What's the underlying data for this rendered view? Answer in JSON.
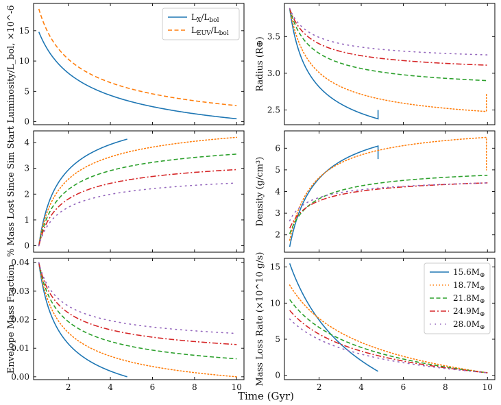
{
  "figure": {
    "xlabel": "Time (Gyr)"
  },
  "chart_data": [
    {
      "id": "luminosity",
      "type": "line",
      "ylabel": "Luminosity/L_bol, ×10^-6",
      "xlim": [
        0.35,
        10.35
      ],
      "ylim": [
        -0.5,
        19.5
      ],
      "xticks": [
        2,
        4,
        6,
        8,
        10
      ],
      "yticks": [
        0,
        5,
        10,
        15
      ],
      "ytick_labels": [
        "0",
        "5",
        "10",
        "15"
      ],
      "show_xtick_labels": false,
      "legend": "top-right",
      "series": [
        {
          "name": "L_X/L_bol",
          "label_main": "L",
          "label_sub": "X",
          "label_main2": "/L",
          "label_sub2": "bol",
          "color": "#1f77b4",
          "dash": "solid",
          "func": "power",
          "p": [
            0.6,
            14.8,
            1.25,
            0.48,
            10.0,
            0.49
          ]
        },
        {
          "name": "L_EUV/L_bol",
          "label_main": "L",
          "label_sub": "EUV",
          "label_main2": "/L",
          "label_sub2": "bol",
          "color": "#ff7f0e",
          "dash": "dashed",
          "func": "power",
          "p": [
            0.6,
            18.6,
            0.95,
            2.65,
            10.0,
            0.49
          ]
        }
      ]
    },
    {
      "id": "radius",
      "type": "line",
      "ylabel": "Radius (R⊕)",
      "xlim": [
        0.35,
        10.35
      ],
      "ylim": [
        2.3,
        3.95
      ],
      "xticks": [
        2,
        4,
        6,
        8,
        10
      ],
      "yticks": [
        2.5,
        3.0,
        3.5
      ],
      "ytick_labels": [
        "2.5",
        "3.0",
        "3.5"
      ],
      "show_xtick_labels": false,
      "series": [
        {
          "name": "15.6M⊕",
          "color": "#1f77b4",
          "dash": "solid",
          "func": "power",
          "p": [
            0.6,
            3.88,
            0.55,
            2.38,
            4.8,
            0.5
          ],
          "tail": 2.5
        },
        {
          "name": "18.7M⊕",
          "color": "#ff7f0e",
          "dash": "dotted",
          "func": "power",
          "p": [
            0.6,
            3.88,
            0.75,
            2.48,
            9.95,
            0.7
          ],
          "tail": 2.73
        },
        {
          "name": "21.8M⊕",
          "color": "#2ca02c",
          "dash": "dashed",
          "func": "power",
          "p": [
            0.6,
            3.88,
            0.75,
            2.9,
            10.0,
            0.7
          ]
        },
        {
          "name": "24.9M⊕",
          "color": "#d62728",
          "dash": "dashdot",
          "func": "power",
          "p": [
            0.6,
            3.88,
            0.75,
            3.11,
            10.0,
            0.7
          ]
        },
        {
          "name": "28.0M⊕",
          "color": "#9467bd",
          "dash": "densedot",
          "func": "power",
          "p": [
            0.6,
            3.88,
            0.75,
            3.25,
            10.0,
            0.7
          ]
        }
      ]
    },
    {
      "id": "mass_lost",
      "type": "line",
      "ylabel": "% Mass Lost Since Sim Start",
      "xlim": [
        0.35,
        10.35
      ],
      "ylim": [
        -0.25,
        4.45
      ],
      "xticks": [
        2,
        4,
        6,
        8,
        10
      ],
      "yticks": [
        0,
        1,
        2,
        3,
        4
      ],
      "ytick_labels": [
        "0",
        "1",
        "2",
        "3",
        "4"
      ],
      "show_xtick_labels": false,
      "series": [
        {
          "name": "15.6M⊕",
          "color": "#1f77b4",
          "dash": "solid",
          "func": "power",
          "p": [
            0.6,
            0.0,
            0.55,
            4.13,
            4.8,
            0.5
          ]
        },
        {
          "name": "18.7M⊕",
          "color": "#ff7f0e",
          "dash": "dotted",
          "func": "power",
          "p": [
            0.6,
            0.0,
            0.55,
            4.2,
            10.0,
            0.5
          ]
        },
        {
          "name": "21.8M⊕",
          "color": "#2ca02c",
          "dash": "dashed",
          "func": "power",
          "p": [
            0.6,
            0.0,
            0.55,
            3.55,
            10.0,
            0.5
          ]
        },
        {
          "name": "24.9M⊕",
          "color": "#d62728",
          "dash": "dashdot",
          "func": "power",
          "p": [
            0.6,
            0.0,
            0.55,
            2.95,
            10.0,
            0.5
          ]
        },
        {
          "name": "28.0M⊕",
          "color": "#9467bd",
          "dash": "densedot",
          "func": "power",
          "p": [
            0.6,
            0.0,
            0.55,
            2.43,
            10.0,
            0.5
          ]
        }
      ]
    },
    {
      "id": "density",
      "type": "line",
      "ylabel": "Density (g/cm³)",
      "xlim": [
        0.35,
        10.35
      ],
      "ylim": [
        1.2,
        6.8
      ],
      "xticks": [
        2,
        4,
        6,
        8,
        10
      ],
      "yticks": [
        2,
        3,
        4,
        5,
        6
      ],
      "ytick_labels": [
        "2",
        "3",
        "4",
        "5",
        "6"
      ],
      "show_xtick_labels": false,
      "series": [
        {
          "name": "15.6M⊕",
          "color": "#1f77b4",
          "dash": "solid",
          "func": "power",
          "p": [
            0.6,
            1.45,
            1.0,
            6.1,
            4.8,
            0.75
          ],
          "tail": 5.5
        },
        {
          "name": "18.7M⊕",
          "color": "#ff7f0e",
          "dash": "dotted",
          "func": "power",
          "p": [
            0.6,
            1.75,
            1.0,
            6.5,
            9.95,
            0.85
          ],
          "tail": 5.0
        },
        {
          "name": "21.8M⊕",
          "color": "#2ca02c",
          "dash": "dashed",
          "func": "power",
          "p": [
            0.6,
            2.05,
            0.85,
            4.75,
            10.0,
            0.7
          ]
        },
        {
          "name": "24.9M⊕",
          "color": "#d62728",
          "dash": "dashdot",
          "func": "power",
          "p": [
            0.6,
            2.3,
            0.7,
            4.4,
            10.0,
            0.6
          ]
        },
        {
          "name": "28.0M⊕",
          "color": "#9467bd",
          "dash": "densedot",
          "func": "power",
          "p": [
            0.6,
            2.65,
            0.55,
            4.4,
            10.0,
            0.5
          ]
        }
      ]
    },
    {
      "id": "envelope",
      "type": "line",
      "ylabel": "Envelope Mass Fraction",
      "xlim": [
        0.35,
        10.35
      ],
      "ylim": [
        -0.001,
        0.0415
      ],
      "xticks": [
        2,
        4,
        6,
        8,
        10
      ],
      "xtick_labels": [
        "2",
        "4",
        "6",
        "8",
        "10"
      ],
      "yticks": [
        0.0,
        0.01,
        0.02,
        0.03,
        0.04
      ],
      "ytick_labels": [
        "0.00",
        "0.01",
        "0.02",
        "0.03",
        "0.04"
      ],
      "show_xtick_labels": true,
      "series": [
        {
          "name": "15.6M⊕",
          "color": "#1f77b4",
          "dash": "solid",
          "func": "power",
          "p": [
            0.6,
            0.04,
            0.55,
            0.0,
            4.8,
            0.5
          ]
        },
        {
          "name": "18.7M⊕",
          "color": "#ff7f0e",
          "dash": "dotted",
          "func": "power",
          "p": [
            0.6,
            0.04,
            0.55,
            0.0,
            10.0,
            0.5
          ]
        },
        {
          "name": "21.8M⊕",
          "color": "#2ca02c",
          "dash": "dashed",
          "func": "power",
          "p": [
            0.6,
            0.04,
            0.55,
            0.0063,
            10.0,
            0.5
          ]
        },
        {
          "name": "24.9M⊕",
          "color": "#d62728",
          "dash": "dashdot",
          "func": "power",
          "p": [
            0.6,
            0.04,
            0.55,
            0.0113,
            10.0,
            0.5
          ]
        },
        {
          "name": "28.0M⊕",
          "color": "#9467bd",
          "dash": "densedot",
          "func": "power",
          "p": [
            0.6,
            0.04,
            0.55,
            0.0152,
            10.0,
            0.5
          ]
        }
      ]
    },
    {
      "id": "mass_loss_rate",
      "type": "line",
      "ylabel": "Mass Loss Rate (×10^10 g/s)",
      "xlim": [
        0.35,
        10.35
      ],
      "ylim": [
        -0.6,
        16.2
      ],
      "xticks": [
        2,
        4,
        6,
        8,
        10
      ],
      "xtick_labels": [
        "2",
        "4",
        "6",
        "8",
        "10"
      ],
      "yticks": [
        0,
        5,
        10,
        15
      ],
      "ytick_labels": [
        "0",
        "5",
        "10",
        "15"
      ],
      "show_xtick_labels": true,
      "legend": "top-right",
      "series": [
        {
          "name": "15.6M⊕",
          "label_main": "15.6M",
          "color": "#1f77b4",
          "dash": "solid",
          "func": "power",
          "p": [
            0.6,
            15.5,
            2.0,
            0.55,
            4.8,
            0.4
          ]
        },
        {
          "name": "18.7M⊕",
          "label_main": "18.7M",
          "color": "#ff7f0e",
          "dash": "dotted",
          "func": "power",
          "p": [
            0.6,
            12.5,
            2.0,
            0.35,
            10.0,
            0.4
          ]
        },
        {
          "name": "21.8M⊕",
          "label_main": "21.8M",
          "color": "#2ca02c",
          "dash": "dashed",
          "func": "power",
          "p": [
            0.6,
            10.5,
            2.0,
            0.35,
            10.0,
            0.4
          ]
        },
        {
          "name": "24.9M⊕",
          "label_main": "24.9M",
          "color": "#d62728",
          "dash": "dashdot",
          "func": "power",
          "p": [
            0.6,
            9.0,
            2.0,
            0.35,
            10.0,
            0.4
          ]
        },
        {
          "name": "28.0M⊕",
          "label_main": "28.0M",
          "color": "#9467bd",
          "dash": "densedot",
          "func": "power",
          "p": [
            0.6,
            7.8,
            2.0,
            0.35,
            10.0,
            0.4
          ]
        }
      ]
    }
  ]
}
